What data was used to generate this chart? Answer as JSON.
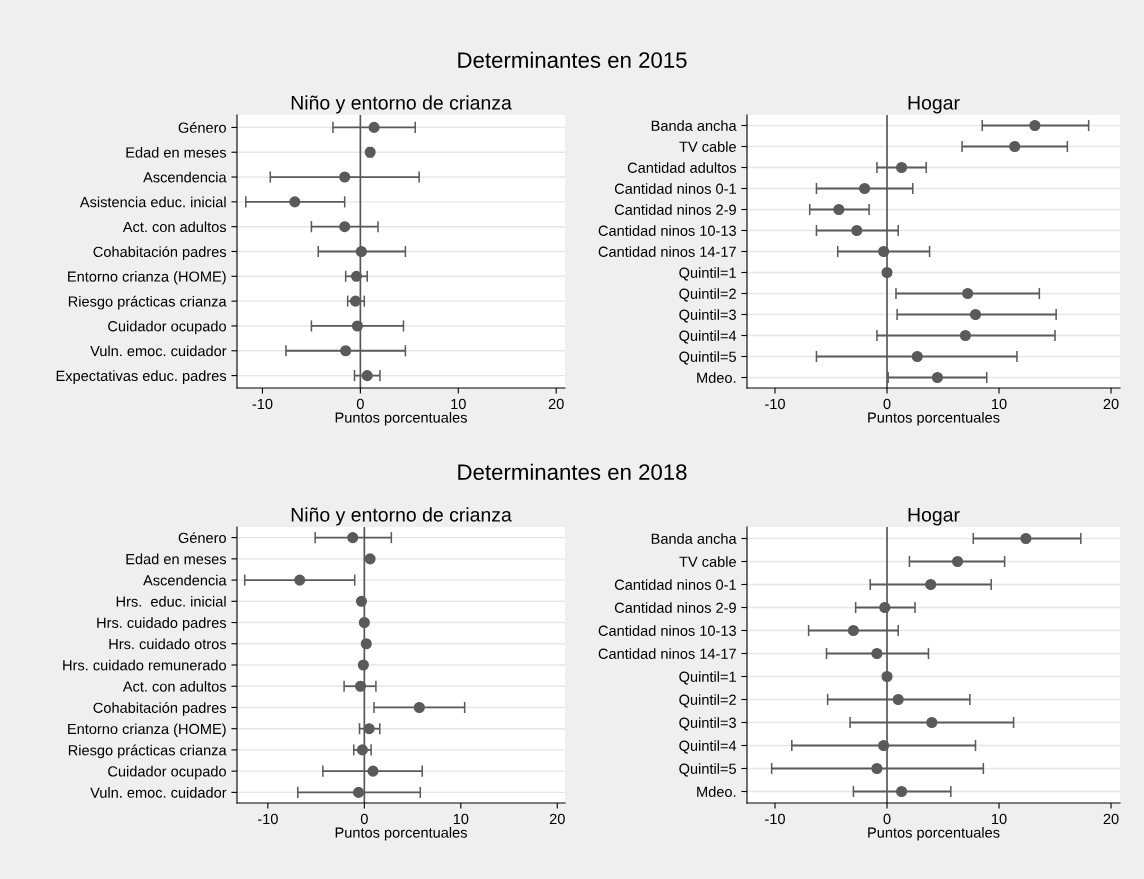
{
  "chart_data": [
    {
      "type": "scatter",
      "orientation": "horizontal",
      "title": "Niño y entorno de crianza",
      "xlabel": "Puntos porcentuales",
      "annotations": [
        "Determinantes en 2015"
      ],
      "categories": [
        "Género",
        "Edad en meses",
        "Ascendencia",
        "Asistencia educ. inicial",
        "Act. con adultos",
        "Cohabitación padres",
        "Entorno crianza (HOME)",
        "Riesgo prácticas crianza",
        "Cuidador ocupado",
        "Vuln. emoc. cuidador",
        "Expectativas educ. padres"
      ],
      "color": "#5a5a5a",
      "values": [
        1.4,
        1.0,
        -1.6,
        -6.7,
        -1.6,
        0.1,
        -0.4,
        -0.5,
        -0.3,
        -1.5,
        0.7
      ],
      "errors": [
        [
          -2.8,
          5.6
        ],
        [
          0.8,
          1.2
        ],
        [
          -9.2,
          6.0
        ],
        [
          -11.7,
          -1.6
        ],
        [
          -5.0,
          1.8
        ],
        [
          -4.3,
          4.6
        ],
        [
          -1.5,
          0.7
        ],
        [
          -1.3,
          0.4
        ],
        [
          -5.0,
          4.4
        ],
        [
          -7.6,
          4.6
        ],
        [
          -0.6,
          2.0
        ]
      ],
      "xlim": [
        -12.6,
        20.9
      ],
      "xticks": [
        -10,
        0,
        10,
        20
      ],
      "ref_lines": [
        {
          "axis": "x",
          "value": 0,
          "color": "#555555"
        }
      ],
      "grid": "y",
      "marker": "circle"
    },
    {
      "type": "scatter",
      "orientation": "horizontal",
      "title": "Hogar",
      "xlabel": "Puntos porcentuales",
      "categories": [
        "Banda ancha",
        "TV cable",
        "Cantidad adultos",
        "Cantidad ninos 0-1",
        "Cantidad ninos 2-9",
        "Cantidad ninos 10-13",
        "Cantidad ninos 14-17",
        "Quintil=1",
        "Quintil=2",
        "Quintil=3",
        "Quintil=4",
        "Quintil=5",
        "Mdeo."
      ],
      "color": "#5a5a5a",
      "values": [
        13.2,
        11.4,
        1.3,
        -2.0,
        -4.3,
        -2.7,
        -0.3,
        0,
        7.2,
        7.9,
        7.0,
        2.7,
        4.5
      ],
      "errors": [
        [
          8.5,
          18.0
        ],
        [
          6.7,
          16.1
        ],
        [
          -0.9,
          3.5
        ],
        [
          -6.3,
          2.3
        ],
        [
          -6.9,
          -1.6
        ],
        [
          -6.3,
          1.0
        ],
        [
          -4.4,
          3.8
        ],
        null,
        [
          0.8,
          13.6
        ],
        [
          0.9,
          15.1
        ],
        [
          -0.9,
          15.0
        ],
        [
          -6.3,
          11.6
        ],
        [
          0.1,
          8.9
        ]
      ],
      "xlim": [
        -12.5,
        20.8
      ],
      "xticks": [
        -10,
        0,
        10,
        20
      ],
      "ref_lines": [
        {
          "axis": "x",
          "value": 0,
          "color": "#555555"
        }
      ],
      "grid": "y",
      "marker": "circle"
    },
    {
      "type": "scatter",
      "orientation": "horizontal",
      "title": "Niño y entorno de crianza",
      "xlabel": "Puntos porcentuales",
      "annotations": [
        "Determinantes en 2018"
      ],
      "categories": [
        "Género",
        "Edad en meses",
        "Ascendencia",
        "Hrs.  educ. inicial",
        "Hrs. cuidado padres",
        "Hrs. cuidado otros",
        "Hrs. cuidado remunerado",
        "Act. con adultos",
        "Cohabitación padres",
        "Entorno crianza (HOME)",
        "Riesgo prácticas crianza",
        "Cuidador ocupado",
        "Vuln. emoc. cuidador"
      ],
      "color": "#5a5a5a",
      "values": [
        -1.2,
        0.6,
        -6.7,
        -0.3,
        0.0,
        0.2,
        -0.1,
        -0.4,
        5.7,
        0.5,
        -0.2,
        0.9,
        -0.6
      ],
      "errors": [
        [
          -5.1,
          2.8
        ],
        null,
        [
          -12.4,
          -1.0
        ],
        null,
        null,
        null,
        null,
        [
          -2.1,
          1.2
        ],
        [
          1.0,
          10.4
        ],
        [
          -0.5,
          1.6
        ],
        [
          -1.1,
          0.7
        ],
        [
          -4.3,
          6.0
        ],
        [
          -6.9,
          5.8
        ]
      ],
      "xlim": [
        -13.2,
        20.8
      ],
      "xticks": [
        -10,
        0,
        10,
        20
      ],
      "ref_lines": [
        {
          "axis": "x",
          "value": 0,
          "color": "#555555"
        }
      ],
      "grid": "y",
      "marker": "circle"
    },
    {
      "type": "scatter",
      "orientation": "horizontal",
      "title": "Hogar",
      "xlabel": "Puntos porcentuales",
      "categories": [
        "Banda ancha",
        "TV cable",
        "Cantidad ninos 0-1",
        "Cantidad ninos 2-9",
        "Cantidad ninos 10-13",
        "Cantidad ninos 14-17",
        "Quintil=1",
        "Quintil=2",
        "Quintil=3",
        "Quintil=4",
        "Quintil=5",
        "Mdeo."
      ],
      "color": "#5a5a5a",
      "values": [
        12.4,
        6.3,
        3.9,
        -0.2,
        -3.0,
        -0.9,
        0,
        1.0,
        4.0,
        -0.3,
        -0.9,
        1.3
      ],
      "errors": [
        [
          7.7,
          17.3
        ],
        [
          2.0,
          10.5
        ],
        [
          -1.5,
          9.3
        ],
        [
          -2.8,
          2.5
        ],
        [
          -7.0,
          1.0
        ],
        [
          -5.4,
          3.7
        ],
        null,
        [
          -5.3,
          7.4
        ],
        [
          -3.3,
          11.3
        ],
        [
          -8.5,
          7.9
        ],
        [
          -10.3,
          8.6
        ],
        [
          -3.0,
          5.7
        ]
      ],
      "xlim": [
        -12.5,
        20.8
      ],
      "xticks": [
        -10,
        0,
        10,
        20
      ],
      "ref_lines": [
        {
          "axis": "x",
          "value": 0,
          "color": "#555555"
        }
      ],
      "grid": "y",
      "marker": "circle"
    }
  ]
}
